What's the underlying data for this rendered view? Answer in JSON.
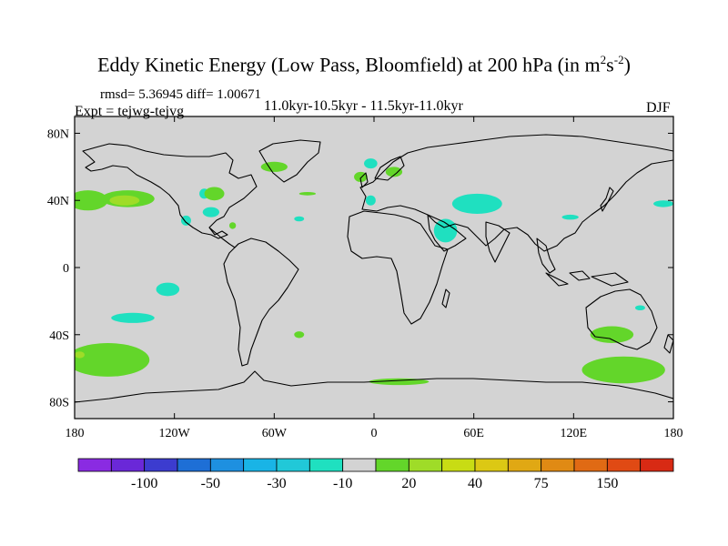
{
  "header": {
    "title": "Eddy Kinetic Energy (Low Pass, Bloomfield) at 200 hPa (in m",
    "title_unit_sup1": "2",
    "title_unit_mid": "s",
    "title_unit_sup2": "-2",
    "title_close": ")",
    "stats": "rmsd= 5.36945 diff= 1.00671",
    "experiment": "Expt = tejwg-tejvg",
    "period": "11.0kyr-10.5kyr - 11.5kyr-11.0kyr",
    "season": "DJF"
  },
  "chart_data": {
    "type": "heatmap",
    "projection": "cylindrical-equidistant",
    "x_ticks": [
      "180",
      "120W",
      "60W",
      "0",
      "60E",
      "120E",
      "180"
    ],
    "y_ticks": [
      "80N",
      "40N",
      "0",
      "40S",
      "80S"
    ],
    "xlim": [
      -180,
      180
    ],
    "ylim": [
      -90,
      90
    ],
    "background_color": "#d3d3d3",
    "colorbar": {
      "colors": [
        "#8a2be2",
        "#6a28d8",
        "#3c3ccf",
        "#1e6fd6",
        "#1e90e0",
        "#19b4e6",
        "#21c8d8",
        "#1fe0c0",
        "#d3d3d3",
        "#63d62a",
        "#9fdc28",
        "#c8dc14",
        "#dcc814",
        "#e0a814",
        "#e08a14",
        "#e06a14",
        "#e04a14",
        "#d82a14"
      ],
      "labels": [
        "-100",
        "-50",
        "-30",
        "-10",
        "20",
        "40",
        "75",
        "150"
      ],
      "label_boundary_index": [
        2,
        4,
        6,
        8,
        10,
        12,
        14,
        16
      ]
    },
    "anomalies": [
      {
        "lon": -172,
        "lat": 40,
        "rx": 12,
        "ry": 6,
        "value": 20
      },
      {
        "lon": -148,
        "lat": 41,
        "rx": 16,
        "ry": 5,
        "value": 20
      },
      {
        "lon": -150,
        "lat": 40,
        "rx": 9,
        "ry": 3,
        "value": 30
      },
      {
        "lon": -102,
        "lat": 44,
        "rx": 3,
        "ry": 3,
        "value": -10
      },
      {
        "lon": -60,
        "lat": 60,
        "rx": 8,
        "ry": 3,
        "value": 20
      },
      {
        "lon": -96,
        "lat": 44,
        "rx": 6,
        "ry": 4,
        "value": 20
      },
      {
        "lon": -98,
        "lat": 33,
        "rx": 5,
        "ry": 3,
        "value": -10
      },
      {
        "lon": -113,
        "lat": 28,
        "rx": 3,
        "ry": 3,
        "value": -10
      },
      {
        "lon": -40,
        "lat": 44,
        "rx": 5,
        "ry": 1,
        "value": 20
      },
      {
        "lon": -45,
        "lat": 29,
        "rx": 3,
        "ry": 1.5,
        "value": -10
      },
      {
        "lon": -85,
        "lat": 25,
        "rx": 2,
        "ry": 2,
        "value": 20
      },
      {
        "lon": -2,
        "lat": 62,
        "rx": 4,
        "ry": 3,
        "value": -10
      },
      {
        "lon": -8,
        "lat": 54,
        "rx": 4,
        "ry": 3,
        "value": 20
      },
      {
        "lon": 12,
        "lat": 57,
        "rx": 5,
        "ry": 3,
        "value": 20
      },
      {
        "lon": -2,
        "lat": 40,
        "rx": 3,
        "ry": 3,
        "value": -10
      },
      {
        "lon": 62,
        "lat": 38,
        "rx": 15,
        "ry": 6,
        "value": -10
      },
      {
        "lon": 43,
        "lat": 22,
        "rx": 7,
        "ry": 7,
        "value": -10
      },
      {
        "lon": 118,
        "lat": 30,
        "rx": 5,
        "ry": 1.5,
        "value": -10
      },
      {
        "lon": 174,
        "lat": 38,
        "rx": 6,
        "ry": 2,
        "value": -10
      },
      {
        "lon": -124,
        "lat": -13,
        "rx": 7,
        "ry": 4,
        "value": -10
      },
      {
        "lon": -145,
        "lat": -30,
        "rx": 13,
        "ry": 3,
        "value": -10
      },
      {
        "lon": -45,
        "lat": -40,
        "rx": 3,
        "ry": 2,
        "value": 20
      },
      {
        "lon": 160,
        "lat": -24,
        "rx": 3,
        "ry": 1.5,
        "value": -10
      },
      {
        "lon": 143,
        "lat": -40,
        "rx": 13,
        "ry": 5,
        "value": 20
      },
      {
        "lon": 150,
        "lat": -61,
        "rx": 25,
        "ry": 8,
        "value": 20
      },
      {
        "lon": -160,
        "lat": -55,
        "rx": 25,
        "ry": 10,
        "value": 20
      },
      {
        "lon": -177,
        "lat": -52,
        "rx": 3,
        "ry": 2,
        "value": 30
      },
      {
        "lon": 15,
        "lat": -68,
        "rx": 18,
        "ry": 2,
        "value": 20
      }
    ]
  }
}
